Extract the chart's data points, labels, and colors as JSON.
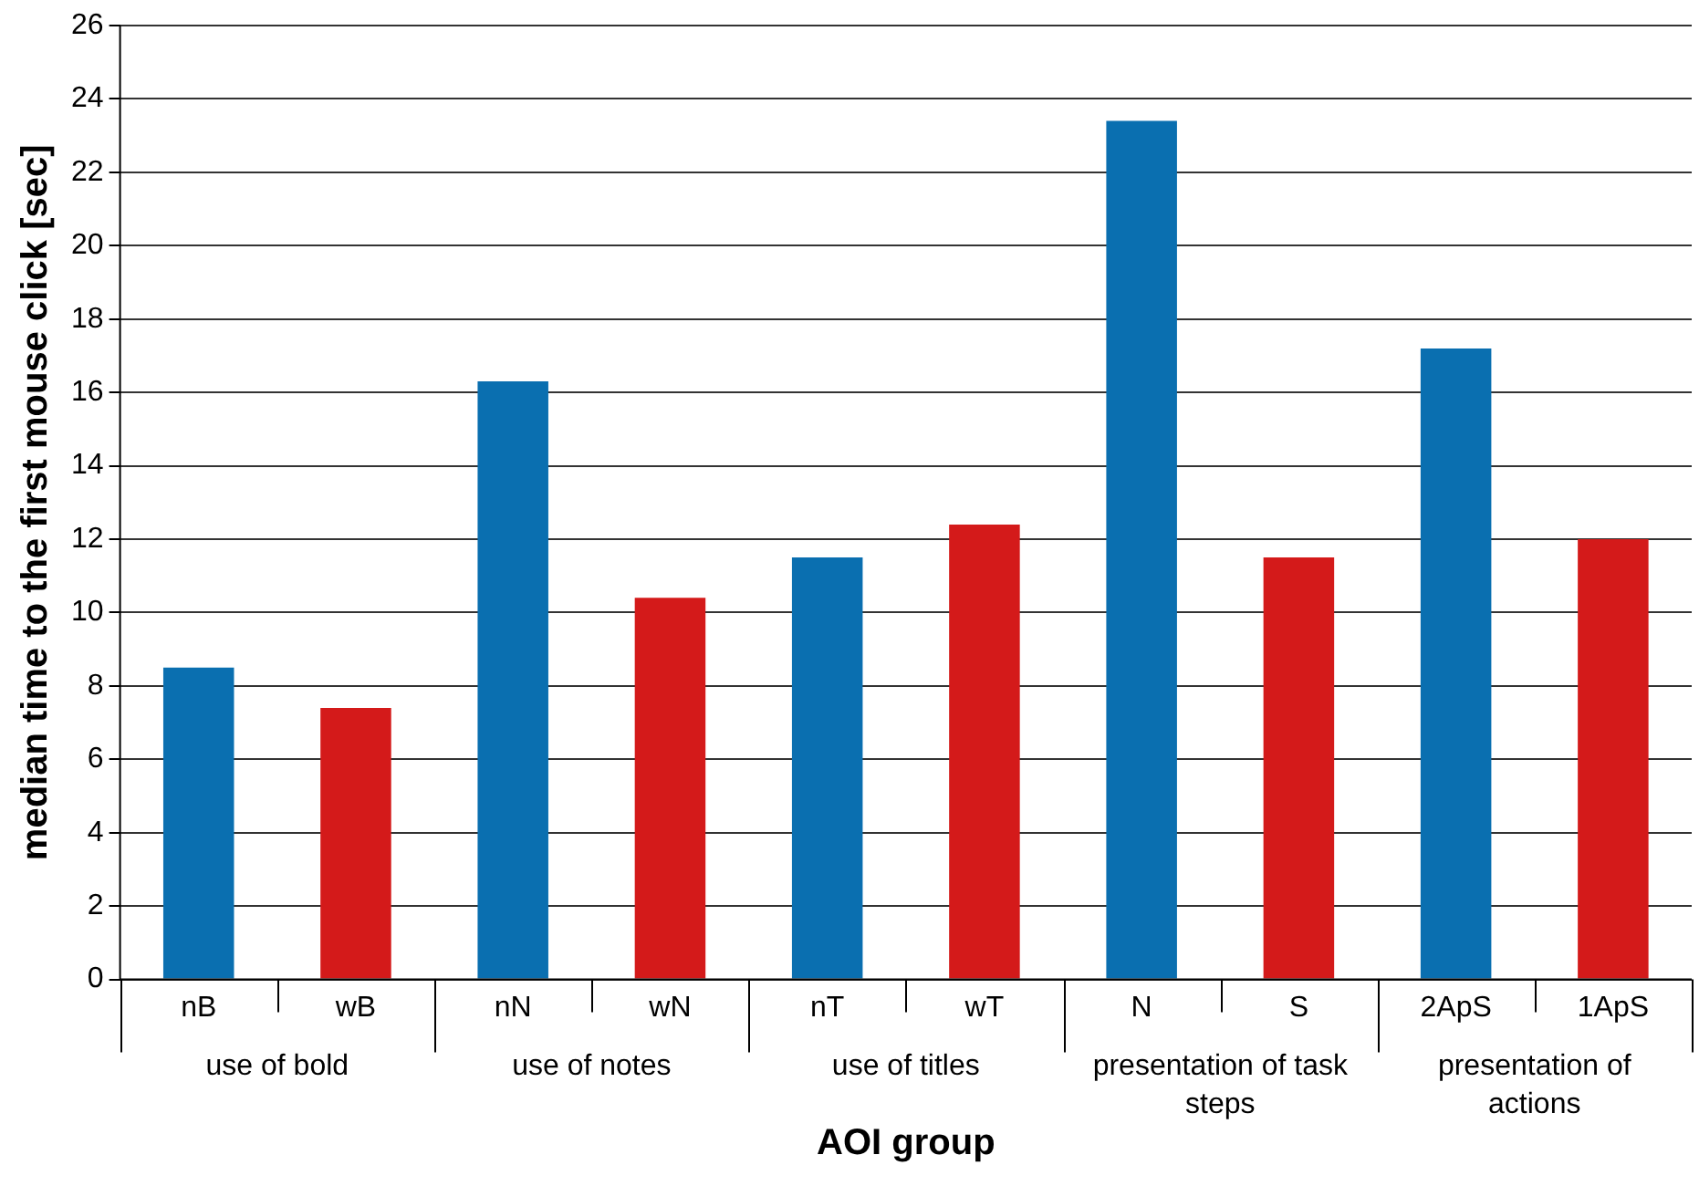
{
  "chart_data": {
    "type": "bar",
    "xlabel": "AOI group",
    "ylabel": "median time to the first mouse click [sec]",
    "categories": [
      "nB",
      "wB",
      "nN",
      "wN",
      "nT",
      "wT",
      "N",
      "S",
      "2ApS",
      "1ApS"
    ],
    "values": [
      8.5,
      7.4,
      16.3,
      10.4,
      11.5,
      12.4,
      23.4,
      11.5,
      17.2,
      12.0
    ],
    "colors": [
      "#0a6fb0",
      "#d41a1a",
      "#0a6fb0",
      "#d41a1a",
      "#0a6fb0",
      "#d41a1a",
      "#0a6fb0",
      "#d41a1a",
      "#0a6fb0",
      "#d41a1a"
    ],
    "annotations": [
      "use of bold",
      "use of notes",
      "use of titles",
      "presentation of task steps",
      "presentation of actions"
    ],
    "ylim": [
      0,
      26
    ],
    "yticks": [
      0,
      2,
      4,
      6,
      8,
      10,
      12,
      14,
      16,
      18,
      20,
      22,
      24,
      26
    ],
    "grid": "y",
    "legend": false
  }
}
